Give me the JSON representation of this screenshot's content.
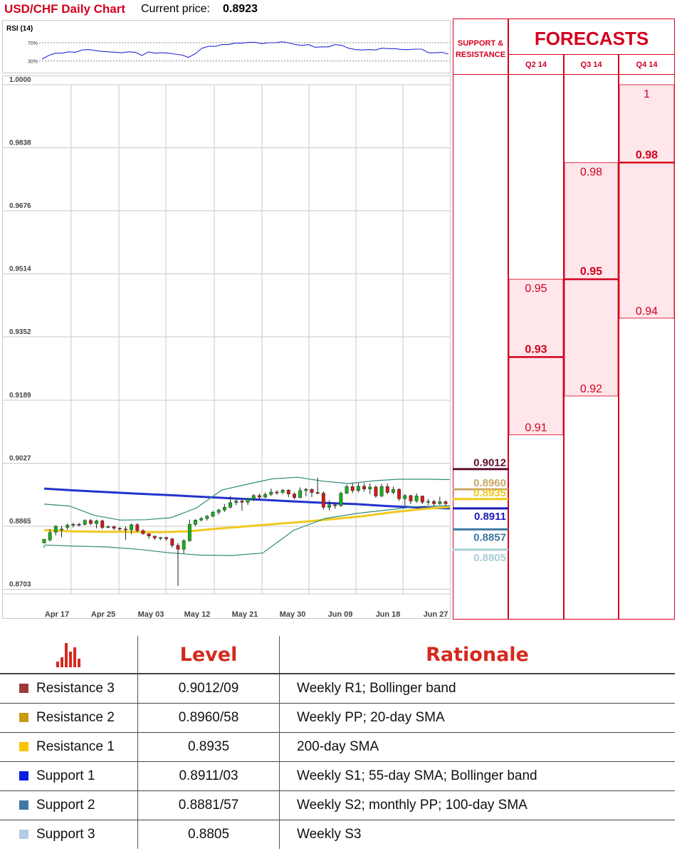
{
  "header": {
    "title": "USD/CHF Daily Chart",
    "price_label": "Current price:",
    "price_value": "0.8923"
  },
  "rsi_panel": {
    "label": "RSI (14)",
    "levels": [
      "70%",
      "30%"
    ],
    "upper_level": 70,
    "lower_level": 30,
    "values": [
      34,
      42,
      47,
      47,
      50,
      49,
      54,
      55,
      53,
      51,
      50,
      49,
      48,
      50,
      49,
      42,
      50,
      47,
      48,
      47,
      45,
      43,
      38,
      46,
      58,
      62,
      62,
      66,
      66,
      69,
      69,
      71,
      71,
      68,
      70,
      70,
      72,
      70,
      66,
      64,
      66,
      60,
      61,
      61,
      66,
      64,
      58,
      55,
      54,
      55,
      54,
      58,
      57,
      57,
      55,
      55,
      56,
      56,
      48,
      48,
      49,
      45
    ]
  },
  "chart_data": {
    "type": "candlestick",
    "title": "USD/CHF Daily Chart",
    "y_ticks": [
      "1.0000",
      "0.9838",
      "0.9676",
      "0.9514",
      "0.9352",
      "0.9189",
      "0.9027",
      "0.8865",
      "0.8703"
    ],
    "ylim": [
      0.8666,
      1.0
    ],
    "x_ticks": [
      "Apr 17",
      "Apr 25",
      "May 03",
      "May 12",
      "May 21",
      "May 30",
      "Jun 09",
      "Jun 18",
      "Jun 27"
    ],
    "grid": true,
    "candles": [
      [
        0.8822,
        0.8832,
        0.8815,
        0.881
      ],
      [
        0.883,
        0.8849,
        0.8858,
        0.8826
      ],
      [
        0.885,
        0.8865,
        0.8868,
        0.8842
      ],
      [
        0.8858,
        0.8858,
        0.8866,
        0.8837
      ],
      [
        0.8862,
        0.8868,
        0.8872,
        0.8856
      ],
      [
        0.8868,
        0.887,
        0.8874,
        0.8862
      ],
      [
        0.887,
        0.8869,
        0.8874,
        0.8865
      ],
      [
        0.887,
        0.888,
        0.8883,
        0.8867
      ],
      [
        0.888,
        0.8872,
        0.8884,
        0.8868
      ],
      [
        0.8872,
        0.8879,
        0.8882,
        0.886
      ],
      [
        0.8879,
        0.8862,
        0.8882,
        0.8858
      ],
      [
        0.8862,
        0.8864,
        0.8867,
        0.886
      ],
      [
        0.8864,
        0.886,
        0.8867,
        0.8855
      ],
      [
        0.886,
        0.8858,
        0.8862,
        0.8853
      ],
      [
        0.8858,
        0.8856,
        0.8865,
        0.883
      ],
      [
        0.8856,
        0.8869,
        0.8872,
        0.8845
      ],
      [
        0.8869,
        0.8854,
        0.8873,
        0.885
      ],
      [
        0.8854,
        0.8846,
        0.8857,
        0.8843
      ],
      [
        0.8846,
        0.884,
        0.8847,
        0.8833
      ],
      [
        0.884,
        0.8835,
        0.884,
        0.883
      ],
      [
        0.8835,
        0.8836,
        0.8838,
        0.883
      ],
      [
        0.8836,
        0.8833,
        0.8838,
        0.8828
      ],
      [
        0.8833,
        0.8816,
        0.8835,
        0.881
      ],
      [
        0.8816,
        0.8806,
        0.8822,
        0.8712
      ],
      [
        0.8806,
        0.8828,
        0.8832,
        0.8795
      ],
      [
        0.8828,
        0.887,
        0.8882,
        0.8825
      ],
      [
        0.887,
        0.8881,
        0.8883,
        0.8866
      ],
      [
        0.8881,
        0.8885,
        0.8889,
        0.8878
      ],
      [
        0.8885,
        0.8891,
        0.8894,
        0.888
      ],
      [
        0.8891,
        0.8901,
        0.8905,
        0.8888
      ],
      [
        0.8901,
        0.8907,
        0.891,
        0.8895
      ],
      [
        0.8907,
        0.8914,
        0.8922,
        0.8902
      ],
      [
        0.8914,
        0.8926,
        0.8943,
        0.8911
      ],
      [
        0.8926,
        0.893,
        0.8936,
        0.8919
      ],
      [
        0.893,
        0.8927,
        0.8934,
        0.8905
      ],
      [
        0.8927,
        0.8935,
        0.8938,
        0.892
      ],
      [
        0.8935,
        0.8944,
        0.8948,
        0.893
      ],
      [
        0.8944,
        0.894,
        0.8949,
        0.8933
      ],
      [
        0.894,
        0.8947,
        0.8952,
        0.8937
      ],
      [
        0.8947,
        0.8953,
        0.8962,
        0.8943
      ],
      [
        0.8953,
        0.8952,
        0.8958,
        0.8946
      ],
      [
        0.8952,
        0.8958,
        0.8961,
        0.8948
      ],
      [
        0.8958,
        0.8948,
        0.896,
        0.894
      ],
      [
        0.8948,
        0.8939,
        0.8952,
        0.8934
      ],
      [
        0.8939,
        0.8957,
        0.8965,
        0.8937
      ],
      [
        0.8957,
        0.896,
        0.8964,
        0.8942
      ],
      [
        0.896,
        0.8952,
        0.8962,
        0.894
      ],
      [
        0.8952,
        0.895,
        0.899,
        0.8947
      ],
      [
        0.895,
        0.8914,
        0.8955,
        0.8908
      ],
      [
        0.8914,
        0.892,
        0.8932,
        0.8906
      ],
      [
        0.892,
        0.8918,
        0.8926,
        0.891
      ],
      [
        0.8918,
        0.895,
        0.8954,
        0.8915
      ],
      [
        0.895,
        0.8967,
        0.8972,
        0.8948
      ],
      [
        0.8967,
        0.8957,
        0.8975,
        0.895
      ],
      [
        0.8957,
        0.8968,
        0.8977,
        0.8952
      ],
      [
        0.8968,
        0.8961,
        0.8976,
        0.8955
      ],
      [
        0.8961,
        0.8966,
        0.8975,
        0.8948
      ],
      [
        0.8966,
        0.8943,
        0.897,
        0.8938
      ],
      [
        0.8943,
        0.8967,
        0.8974,
        0.894
      ],
      [
        0.8967,
        0.8952,
        0.8975,
        0.8947
      ],
      [
        0.8952,
        0.896,
        0.8967,
        0.8948
      ],
      [
        0.896,
        0.8936,
        0.8963,
        0.893
      ],
      [
        0.8936,
        0.8944,
        0.8948,
        0.8918
      ],
      [
        0.8944,
        0.893,
        0.8946,
        0.8922
      ],
      [
        0.893,
        0.8943,
        0.895,
        0.8925
      ],
      [
        0.8943,
        0.8927,
        0.8944,
        0.8922
      ],
      [
        0.8927,
        0.8929,
        0.8935,
        0.892
      ],
      [
        0.8929,
        0.8923,
        0.8933,
        0.8917
      ],
      [
        0.8923,
        0.8928,
        0.8941,
        0.892
      ],
      [
        0.8928,
        0.8923,
        0.8932,
        0.8918
      ]
    ],
    "overlays": [
      {
        "color": "#2233cc",
        "values": [
          0.8962,
          0.8957,
          0.8953,
          0.8949,
          0.8945,
          0.8941,
          0.8937,
          0.8933,
          0.8929,
          0.8925,
          0.8922,
          0.8917,
          0.8913,
          0.8911
        ]
      },
      {
        "color": "#f2c81e",
        "values": [
          0.8855,
          0.8852,
          0.8851,
          0.8851,
          0.885,
          0.8852,
          0.8859,
          0.8865,
          0.8871,
          0.8877,
          0.8884,
          0.8891,
          0.8901,
          0.8909,
          0.8915
        ]
      },
      {
        "color": "#2e8b7a",
        "values": [
          0.8922,
          0.8917,
          0.8893,
          0.8881,
          0.8882,
          0.8887,
          0.8912,
          0.8958,
          0.8973,
          0.8987,
          0.8991,
          0.8981,
          0.8975,
          0.8982,
          0.8986,
          0.8986,
          0.8985
        ]
      },
      {
        "color": "#2e8b7a",
        "values": [
          0.8817,
          0.8814,
          0.8812,
          0.8806,
          0.8797,
          0.8791,
          0.879,
          0.8796,
          0.8855,
          0.8885,
          0.8898,
          0.8907,
          0.8916,
          0.8918
        ]
      }
    ],
    "sr_levels": [
      {
        "value": 0.9012,
        "label": "0.9012",
        "color": "#5e1030"
      },
      {
        "value": 0.896,
        "label": "0.8960",
        "color": "#caa86a"
      },
      {
        "value": 0.8935,
        "label": "0.8935",
        "color": "#f2c81e"
      },
      {
        "value": 0.8911,
        "label": "0.8911",
        "color": "#1a1ab8"
      },
      {
        "value": 0.8857,
        "label": "0.8857",
        "color": "#3e78a2"
      },
      {
        "value": 0.8805,
        "label": "0.8805",
        "color": "#a8d0d8"
      }
    ]
  },
  "forecasts": {
    "sr_header": "SUPPORT & RESISTANCE",
    "title": "FORECASTS",
    "quarters": [
      {
        "label": "Q2 14",
        "high": "0.95",
        "mid": "0.93",
        "low": "0.91",
        "high_v": 0.95,
        "mid_v": 0.93,
        "low_v": 0.91
      },
      {
        "label": "Q3 14",
        "high": "0.98",
        "mid": "0.95",
        "low": "0.92",
        "high_v": 0.98,
        "mid_v": 0.95,
        "low_v": 0.92
      },
      {
        "label": "Q4 14",
        "high": "1",
        "mid": "0.98",
        "low": "0.94",
        "high_v": 1.0,
        "mid_v": 0.98,
        "low_v": 0.94
      }
    ]
  },
  "levels_table": {
    "header_icon": "bar-chart-icon",
    "level_header": "Level",
    "rationale_header": "Rationale",
    "rows": [
      {
        "name": "Resistance 3",
        "level": "0.9012/09",
        "rationale": "Weekly R1; Bollinger band",
        "color": "#9b3a3a"
      },
      {
        "name": "Resistance 2",
        "level": "0.8960/58",
        "rationale": "Weekly PP; 20-day SMA",
        "color": "#c89b14"
      },
      {
        "name": "Resistance 1",
        "level": "0.8935",
        "rationale": "200-day SMA",
        "color": "#f7c400"
      },
      {
        "name": "Support 1",
        "level": "0.8911/03",
        "rationale": "Weekly S1; 55-day SMA; Bollinger band",
        "color": "#0a1ee0"
      },
      {
        "name": "Support 2",
        "level": "0.8881/57",
        "rationale": "Weekly S2; monthly PP; 100-day SMA",
        "color": "#3f78a8"
      },
      {
        "name": "Support 3",
        "level": "0.8805",
        "rationale": "Weekly S3",
        "color": "#b4cce4"
      }
    ]
  }
}
